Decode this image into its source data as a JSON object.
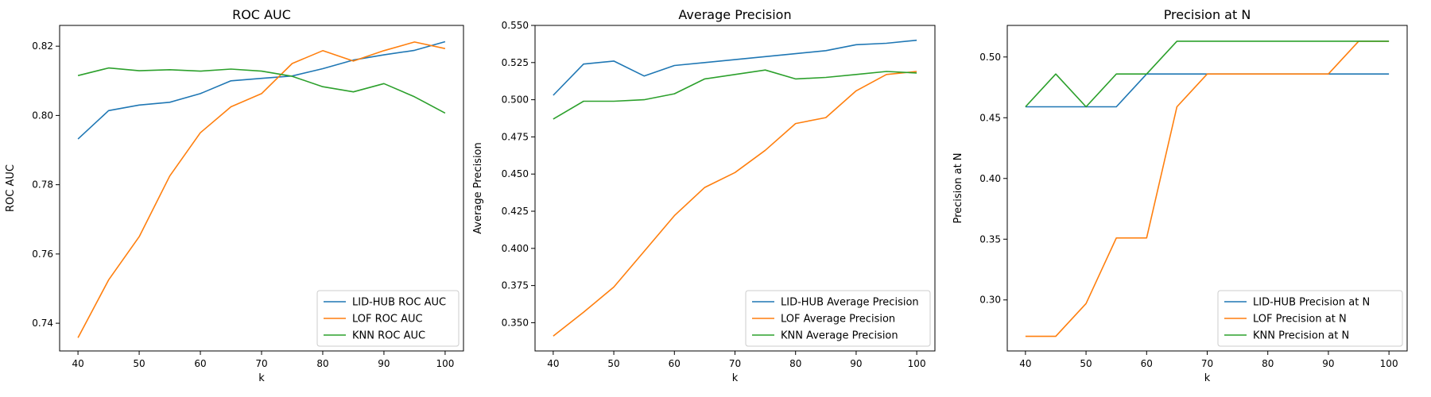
{
  "chart_data": [
    {
      "type": "line",
      "title": "ROC AUC",
      "xlabel": "k",
      "ylabel": "ROC AUC",
      "xlim": [
        37,
        103
      ],
      "ylim": [
        0.732,
        0.826
      ],
      "xticks": [
        40,
        50,
        60,
        70,
        80,
        90,
        100
      ],
      "yticks": [
        0.74,
        0.76,
        0.78,
        0.8,
        0.82
      ],
      "yprec": 2,
      "legend": "lower-right",
      "x": [
        40,
        45,
        50,
        55,
        60,
        65,
        70,
        75,
        80,
        85,
        90,
        95,
        100
      ],
      "series": [
        {
          "name": "LID-HUB ROC AUC",
          "color": "#1f77b4",
          "values": [
            0.7932,
            0.8014,
            0.803,
            0.8038,
            0.8063,
            0.81,
            0.8107,
            0.8114,
            0.8135,
            0.816,
            0.8175,
            0.8188,
            0.8213
          ]
        },
        {
          "name": "LOF ROC AUC",
          "color": "#ff7f0e",
          "values": [
            0.7358,
            0.7525,
            0.765,
            0.7825,
            0.795,
            0.8025,
            0.8063,
            0.815,
            0.8187,
            0.8157,
            0.8187,
            0.8212,
            0.8193
          ]
        },
        {
          "name": "KNN ROC AUC",
          "color": "#2ca02c",
          "values": [
            0.8115,
            0.8137,
            0.8129,
            0.8132,
            0.8128,
            0.8134,
            0.8128,
            0.8113,
            0.8083,
            0.8068,
            0.8092,
            0.8054,
            0.8007
          ]
        }
      ]
    },
    {
      "type": "line",
      "title": "Average Precision",
      "xlabel": "k",
      "ylabel": "Average Precision",
      "xlim": [
        37,
        103
      ],
      "ylim": [
        0.331,
        0.55
      ],
      "xticks": [
        40,
        50,
        60,
        70,
        80,
        90,
        100
      ],
      "yticks": [
        0.35,
        0.375,
        0.4,
        0.425,
        0.45,
        0.475,
        0.5,
        0.525,
        0.55
      ],
      "yprec": 3,
      "legend": "lower-right",
      "x": [
        40,
        45,
        50,
        55,
        60,
        65,
        70,
        75,
        80,
        85,
        90,
        95,
        100
      ],
      "series": [
        {
          "name": "LID-HUB Average Precision",
          "color": "#1f77b4",
          "values": [
            0.503,
            0.524,
            0.526,
            0.516,
            0.523,
            0.525,
            0.527,
            0.529,
            0.531,
            0.533,
            0.537,
            0.538,
            0.54
          ]
        },
        {
          "name": "LOF Average Precision",
          "color": "#ff7f0e",
          "values": [
            0.341,
            0.357,
            0.374,
            0.398,
            0.422,
            0.441,
            0.451,
            0.466,
            0.484,
            0.488,
            0.506,
            0.517,
            0.519
          ]
        },
        {
          "name": "KNN Average Precision",
          "color": "#2ca02c",
          "values": [
            0.487,
            0.499,
            0.499,
            0.5,
            0.504,
            0.514,
            0.517,
            0.52,
            0.514,
            0.515,
            0.517,
            0.519,
            0.518
          ]
        }
      ]
    },
    {
      "type": "line",
      "title": "Precision at N",
      "xlabel": "k",
      "ylabel": "Precision at N",
      "xlim": [
        37,
        103
      ],
      "ylim": [
        0.258,
        0.526
      ],
      "xticks": [
        40,
        50,
        60,
        70,
        80,
        90,
        100
      ],
      "yticks": [
        0.3,
        0.35,
        0.4,
        0.45,
        0.5
      ],
      "yprec": 2,
      "legend": "lower-right",
      "x": [
        40,
        45,
        50,
        55,
        60,
        65,
        70,
        75,
        80,
        85,
        90,
        95,
        100
      ],
      "series": [
        {
          "name": "LID-HUB Precision at N",
          "color": "#1f77b4",
          "values": [
            0.459,
            0.459,
            0.459,
            0.459,
            0.486,
            0.486,
            0.486,
            0.486,
            0.486,
            0.486,
            0.486,
            0.486,
            0.486
          ]
        },
        {
          "name": "LOF Precision at N",
          "color": "#ff7f0e",
          "values": [
            0.27,
            0.27,
            0.297,
            0.351,
            0.351,
            0.459,
            0.486,
            0.486,
            0.486,
            0.486,
            0.486,
            0.513,
            0.513
          ]
        },
        {
          "name": "KNN Precision at N",
          "color": "#2ca02c",
          "values": [
            0.459,
            0.486,
            0.459,
            0.486,
            0.486,
            0.513,
            0.513,
            0.513,
            0.513,
            0.513,
            0.513,
            0.513,
            0.513
          ]
        }
      ]
    }
  ]
}
